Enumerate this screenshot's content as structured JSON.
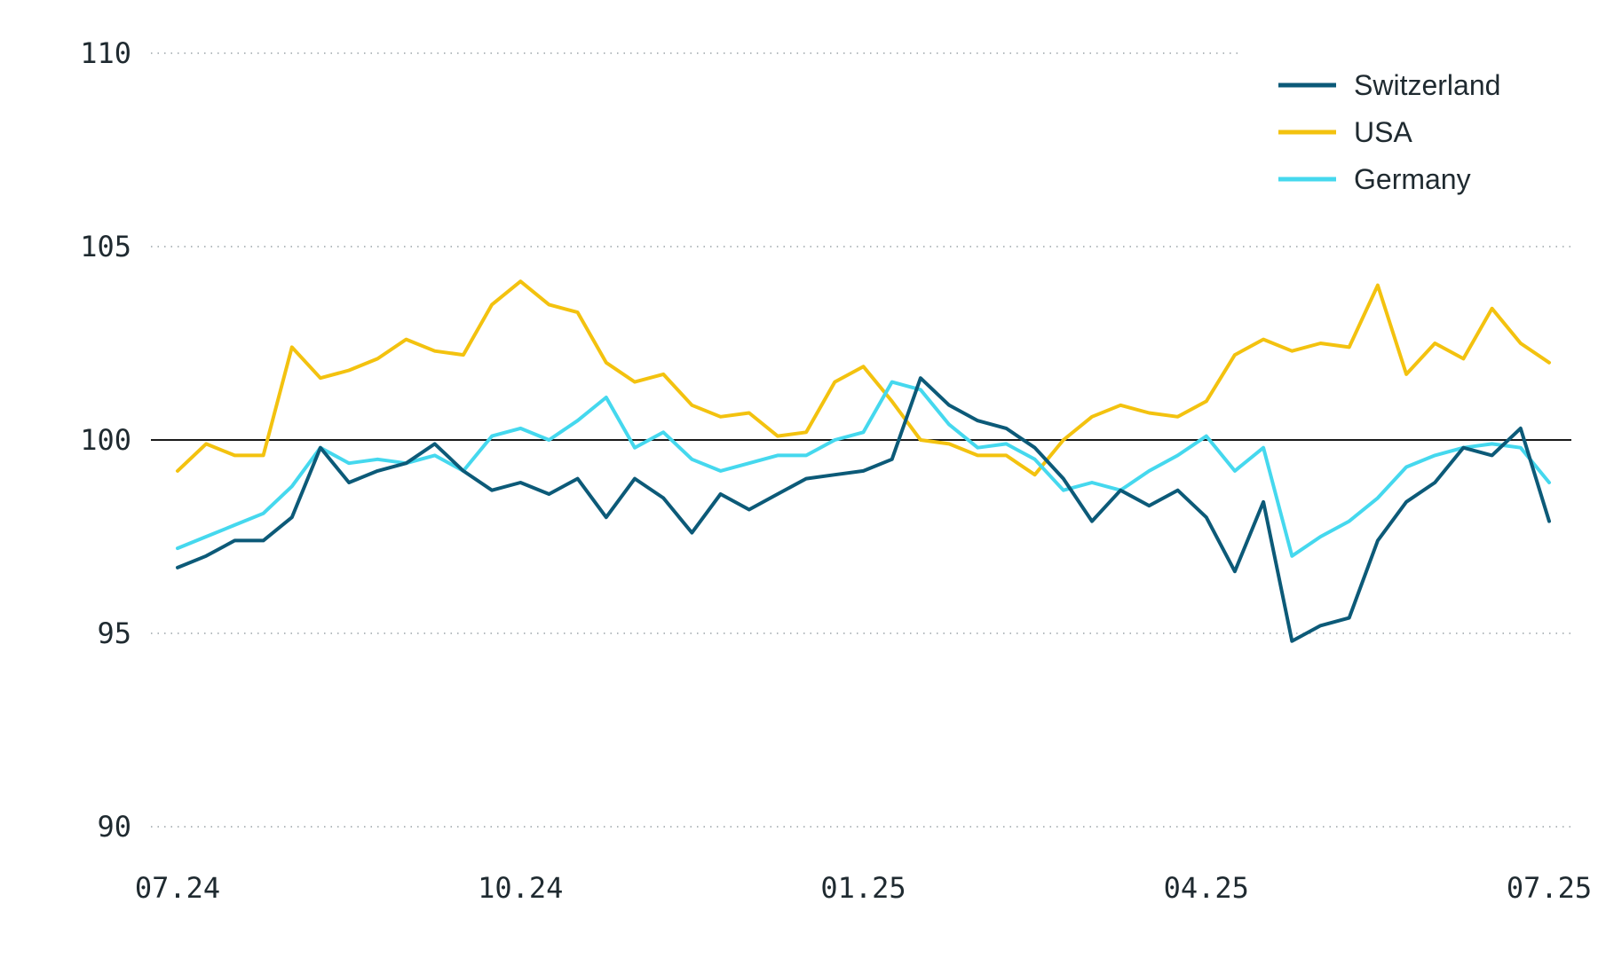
{
  "chart_data": {
    "type": "line",
    "title": "",
    "xlabel": "",
    "ylabel": "",
    "ylim": [
      90,
      110
    ],
    "yticks": [
      "90",
      "95",
      "100",
      "105",
      "110"
    ],
    "xticks": [
      "07.24",
      "10.24",
      "01.25",
      "04.25",
      "07.25"
    ],
    "reference_line": 100,
    "grid": "horizontal dotted",
    "legend_position": "top-right",
    "series": [
      {
        "name": "Switzerland",
        "color": "#0c5a78",
        "x": [
          0,
          0.25,
          0.5,
          0.75,
          1.0,
          1.25,
          1.5,
          1.75,
          2.0,
          2.25,
          2.5,
          2.75,
          3.0,
          3.25,
          3.5,
          3.75,
          4.0,
          4.25,
          4.5,
          4.75,
          5.0,
          5.25,
          5.5,
          5.75,
          6.0,
          6.25,
          6.5,
          6.75,
          7.0,
          7.25,
          7.5,
          7.75,
          8.0,
          8.25,
          8.5,
          8.75,
          9.0,
          9.25,
          9.5,
          9.75,
          10.0,
          10.25,
          10.5,
          10.75,
          11.0,
          11.25,
          11.5,
          11.75,
          12.0
        ],
        "values": [
          96.7,
          97.0,
          97.4,
          97.4,
          98.0,
          99.8,
          98.9,
          99.2,
          99.4,
          99.9,
          99.2,
          98.7,
          98.9,
          98.6,
          99.0,
          98.0,
          99.0,
          98.5,
          97.6,
          98.6,
          98.2,
          98.6,
          99.0,
          99.1,
          99.2,
          99.5,
          101.6,
          100.9,
          100.5,
          100.3,
          99.8,
          99.0,
          97.9,
          98.7,
          98.3,
          98.7,
          98.0,
          96.6,
          98.4,
          94.8,
          95.2,
          95.4,
          97.4,
          98.4,
          98.9,
          99.8,
          99.6,
          100.3,
          97.9
        ]
      },
      {
        "name": "USA",
        "color": "#f3c20f",
        "x": [
          0,
          0.25,
          0.5,
          0.75,
          1.0,
          1.25,
          1.5,
          1.75,
          2.0,
          2.25,
          2.5,
          2.75,
          3.0,
          3.25,
          3.5,
          3.75,
          4.0,
          4.25,
          4.5,
          4.75,
          5.0,
          5.25,
          5.5,
          5.75,
          6.0,
          6.25,
          6.5,
          6.75,
          7.0,
          7.25,
          7.5,
          7.75,
          8.0,
          8.25,
          8.5,
          8.75,
          9.0,
          9.25,
          9.5,
          9.75,
          10.0,
          10.25,
          10.5,
          10.75,
          11.0,
          11.25,
          11.5,
          11.75,
          12.0
        ],
        "values": [
          99.2,
          99.9,
          99.6,
          99.6,
          102.4,
          101.6,
          101.8,
          102.1,
          102.6,
          102.3,
          102.2,
          103.5,
          104.1,
          103.5,
          103.3,
          102.0,
          101.5,
          101.7,
          100.9,
          100.6,
          100.7,
          100.1,
          100.2,
          101.5,
          101.9,
          101.0,
          100.0,
          99.9,
          99.6,
          99.6,
          99.1,
          100.0,
          100.6,
          100.9,
          100.7,
          100.6,
          101.0,
          102.2,
          102.6,
          102.3,
          102.5,
          102.4,
          104.0,
          101.7,
          102.5,
          102.1,
          103.4,
          102.5,
          102.0
        ]
      },
      {
        "name": "Germany",
        "color": "#45d8ee",
        "x": [
          0,
          0.25,
          0.5,
          0.75,
          1.0,
          1.25,
          1.5,
          1.75,
          2.0,
          2.25,
          2.5,
          2.75,
          3.0,
          3.25,
          3.5,
          3.75,
          4.0,
          4.25,
          4.5,
          4.75,
          5.0,
          5.25,
          5.5,
          5.75,
          6.0,
          6.25,
          6.5,
          6.75,
          7.0,
          7.25,
          7.5,
          7.75,
          8.0,
          8.25,
          8.5,
          8.75,
          9.0,
          9.25,
          9.5,
          9.75,
          10.0,
          10.25,
          10.5,
          10.75,
          11.0,
          11.25,
          11.5,
          11.75,
          12.0
        ],
        "values": [
          97.2,
          97.5,
          97.8,
          98.1,
          98.8,
          99.8,
          99.4,
          99.5,
          99.4,
          99.6,
          99.2,
          100.1,
          100.3,
          100.0,
          100.5,
          101.1,
          99.8,
          100.2,
          99.5,
          99.2,
          99.4,
          99.6,
          99.6,
          100.0,
          100.2,
          101.5,
          101.3,
          100.4,
          99.8,
          99.9,
          99.5,
          98.7,
          98.9,
          98.7,
          99.2,
          99.6,
          100.1,
          99.2,
          99.8,
          97.0,
          97.5,
          97.9,
          98.5,
          99.3,
          99.6,
          99.8,
          99.9,
          99.8,
          98.9
        ]
      }
    ]
  }
}
